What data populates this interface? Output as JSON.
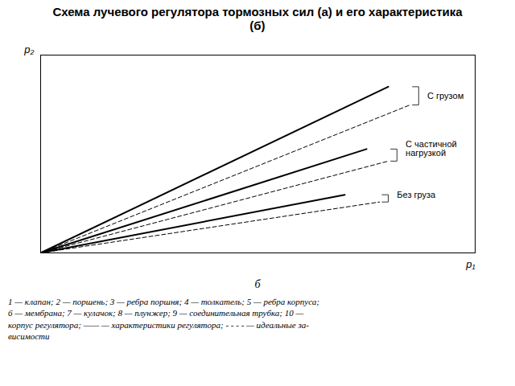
{
  "chart_data": {
    "type": "line",
    "title": "Схема лучевого регулятора тормозных сил (а) и его характеристика\n(б)",
    "xlabel": "p₁",
    "ylabel": "p₂",
    "xlim": [
      0,
      10
    ],
    "ylim": [
      0,
      10
    ],
    "tick_labels": false,
    "grid": false,
    "color": "black",
    "series": [
      {
        "name": "С грузом",
        "line_style": "solid",
        "x": [
          0,
          8.0
        ],
        "values": [
          0,
          8.4
        ]
      },
      {
        "line_style": "dashed",
        "x": [
          0,
          8.5
        ],
        "values": [
          0,
          7.48
        ]
      },
      {
        "name": "С частичной\nнагрузкой",
        "line_style": "solid",
        "x": [
          0,
          7.5
        ],
        "values": [
          0,
          5.25
        ]
      },
      {
        "line_style": "dashed",
        "x": [
          0,
          8.0
        ],
        "values": [
          0,
          4.64
        ]
      },
      {
        "name": "Без груза",
        "line_style": "solid",
        "x": [
          0,
          7.0
        ],
        "values": [
          0,
          2.94
        ]
      },
      {
        "line_style": "dashed",
        "x": [
          0,
          7.8
        ],
        "values": [
          0,
          2.574
        ]
      }
    ],
    "annotations": [
      "б"
    ],
    "caption": "1 — клапан; 2 — поршень; 3 — ребра поршня; 4 — толкатель; 5 — ребра корпуса;\n6 — мембрана; 7 — кулачок; 8 — плунжер; 9 — соединительная трубка;  10 —\nкорпус регулятора; —— — характеристики регулятора; - - - - — идеальные за-\nвисимости"
  }
}
